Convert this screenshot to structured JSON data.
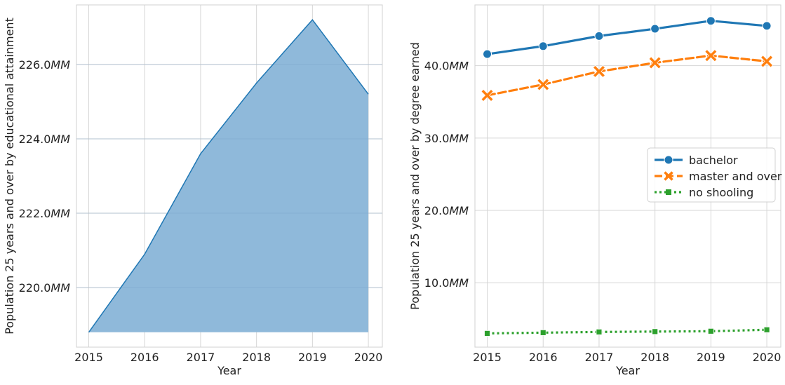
{
  "chart_data": [
    {
      "type": "area",
      "xlabel": "Year",
      "ylabel": "Population 25 years and over by educational attainment",
      "x": [
        2015,
        2016,
        2017,
        2018,
        2019,
        2020
      ],
      "values": [
        218.8,
        220.9,
        223.6,
        225.5,
        227.2,
        225.2
      ],
      "ylim": [
        218.4,
        227.6
      ],
      "yticks": [
        220,
        222,
        224,
        226
      ],
      "ytick_labels": [
        "220.0MM",
        "222.0MM",
        "224.0MM",
        "226.0MM"
      ],
      "xticks": [
        "2015",
        "2016",
        "2017",
        "2018",
        "2019",
        "2020"
      ],
      "color": "#1f77b4",
      "fill_color": "#8fb9da",
      "grid": true
    },
    {
      "type": "line",
      "xlabel": "Year",
      "ylabel": "Population 25 years and over by degree earned",
      "x": [
        2015,
        2016,
        2017,
        2018,
        2019,
        2020
      ],
      "series": [
        {
          "name": "bachelor",
          "values": [
            41.6,
            42.7,
            44.1,
            45.1,
            46.2,
            45.5
          ],
          "color": "#1f77b4",
          "marker": "circle",
          "dash": "solid"
        },
        {
          "name": "master and over",
          "values": [
            35.9,
            37.4,
            39.2,
            40.4,
            41.4,
            40.6
          ],
          "color": "#ff7f0e",
          "marker": "x",
          "dash": "dashed"
        },
        {
          "name": "no shooling",
          "values": [
            3.0,
            3.1,
            3.2,
            3.25,
            3.3,
            3.5
          ],
          "color": "#2ca02c",
          "marker": "square",
          "dash": "dotted"
        }
      ],
      "ylim": [
        1.1,
        48.4
      ],
      "yticks": [
        10,
        20,
        30,
        40
      ],
      "ytick_labels": [
        "10.0MM",
        "20.0MM",
        "30.0MM",
        "40.0MM"
      ],
      "xticks": [
        "2015",
        "2016",
        "2017",
        "2018",
        "2019",
        "2020"
      ],
      "legend_position": "center-right",
      "grid": true
    }
  ]
}
